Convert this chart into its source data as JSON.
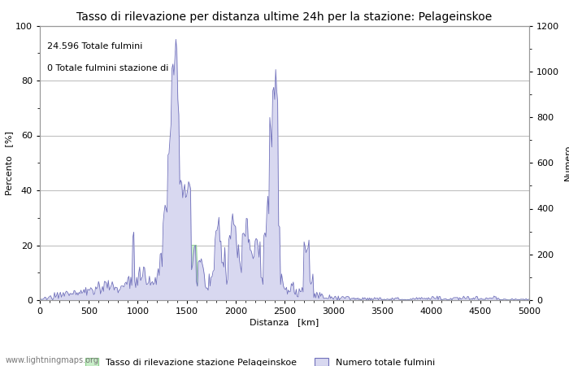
{
  "title": "Tasso di rilevazione per distanza ultime 24h per la stazione: Pelageinskoe",
  "xlabel": "Distanza   [km]",
  "ylabel_left": "Percento   [%]",
  "ylabel_right": "Numero",
  "annotation_line1": "24.596 Totale fulmini",
  "annotation_line2": "0 Totale fulmini stazione di",
  "legend_green": "Tasso di rilevazione stazione Pelageinskoe",
  "legend_blue": "Numero totale fulmini",
  "watermark": "www.lightningmaps.org",
  "xlim": [
    0,
    5000
  ],
  "ylim_left": [
    0,
    100
  ],
  "ylim_right": [
    0,
    1200
  ],
  "xticks": [
    0,
    500,
    1000,
    1500,
    2000,
    2500,
    3000,
    3500,
    4000,
    4500,
    5000
  ],
  "yticks_left": [
    0,
    20,
    40,
    60,
    80,
    100
  ],
  "yticks_right": [
    0,
    200,
    400,
    600,
    800,
    1000,
    1200
  ],
  "color_blue_fill": "#d8d8f0",
  "color_blue_line": "#7070bb",
  "color_green_fill": "#c8eec8",
  "color_green_line": "#88cc88",
  "background_color": "#ffffff",
  "grid_color": "#c0c0c0",
  "title_fontsize": 10,
  "axis_fontsize": 8,
  "tick_fontsize": 8,
  "annotation_fontsize": 8
}
